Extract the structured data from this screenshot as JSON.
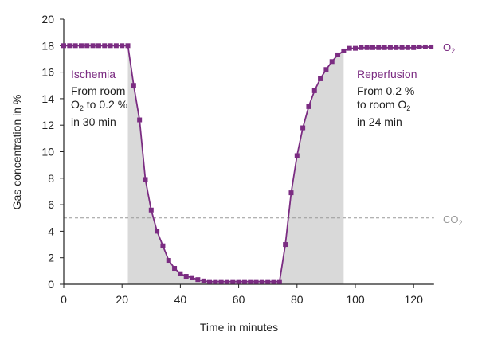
{
  "chart_data": {
    "type": "line",
    "xlabel": "Time in minutes",
    "ylabel": "Gas concentration in %",
    "xlim": [
      0,
      127
    ],
    "ylim": [
      0,
      20
    ],
    "x_ticks": [
      0,
      20,
      40,
      60,
      80,
      100,
      120
    ],
    "y_ticks": [
      0,
      2,
      4,
      6,
      8,
      10,
      12,
      14,
      16,
      18,
      20
    ],
    "grid": false,
    "series": [
      {
        "name": "O2",
        "color": "#7b2c82",
        "marker": "square",
        "x": [
          0,
          2,
          4,
          6,
          8,
          10,
          12,
          14,
          16,
          18,
          20,
          22,
          24,
          26,
          28,
          30,
          32,
          34,
          36,
          38,
          40,
          42,
          44,
          46,
          48,
          50,
          52,
          54,
          56,
          58,
          60,
          62,
          64,
          66,
          68,
          70,
          72,
          74,
          76,
          78,
          80,
          82,
          84,
          86,
          88,
          90,
          92,
          94,
          96,
          98,
          100,
          102,
          104,
          106,
          108,
          110,
          112,
          114,
          116,
          118,
          120,
          122,
          124,
          126
        ],
        "y": [
          18,
          18,
          18,
          18,
          18,
          18,
          18,
          18,
          18,
          18,
          18,
          18,
          15.0,
          12.4,
          7.9,
          5.6,
          4.0,
          2.9,
          1.8,
          1.2,
          0.8,
          0.6,
          0.5,
          0.35,
          0.25,
          0.2,
          0.2,
          0.2,
          0.2,
          0.2,
          0.2,
          0.2,
          0.2,
          0.2,
          0.2,
          0.2,
          0.2,
          0.2,
          3.0,
          6.9,
          9.7,
          11.8,
          13.4,
          14.6,
          15.5,
          16.2,
          16.8,
          17.3,
          17.6,
          17.8,
          17.8,
          17.85,
          17.85,
          17.85,
          17.85,
          17.85,
          17.85,
          17.85,
          17.85,
          17.85,
          17.85,
          17.9,
          17.9,
          17.9
        ]
      },
      {
        "name": "CO2",
        "color": "#999999",
        "style": "dashed",
        "x": [
          0,
          127
        ],
        "y": [
          5,
          5
        ]
      }
    ],
    "shaded_regions": [
      {
        "x_from": 22,
        "x_to": 52,
        "color": "#d9d9d9"
      },
      {
        "x_from": 74,
        "x_to": 96,
        "color": "#d9d9d9"
      }
    ],
    "annotations": [
      {
        "title": "Ischemia",
        "title_color": "#7b2c82",
        "line1": "From room",
        "line2_main": "O",
        "line2_sub": "2",
        "line2_rest": " to 0.2 %",
        "line3": "in 30 min"
      },
      {
        "title": "Reperfusion",
        "title_color": "#7b2c82",
        "line1": "From 0.2 %",
        "line2_main": "to room O",
        "line2_sub": "2",
        "line2_rest": "",
        "line3": "in 24 min"
      }
    ],
    "series_labels": [
      {
        "main": "O",
        "sub": "2",
        "color": "#7b2c82"
      },
      {
        "main": "CO",
        "sub": "2",
        "color": "#999999"
      }
    ]
  }
}
